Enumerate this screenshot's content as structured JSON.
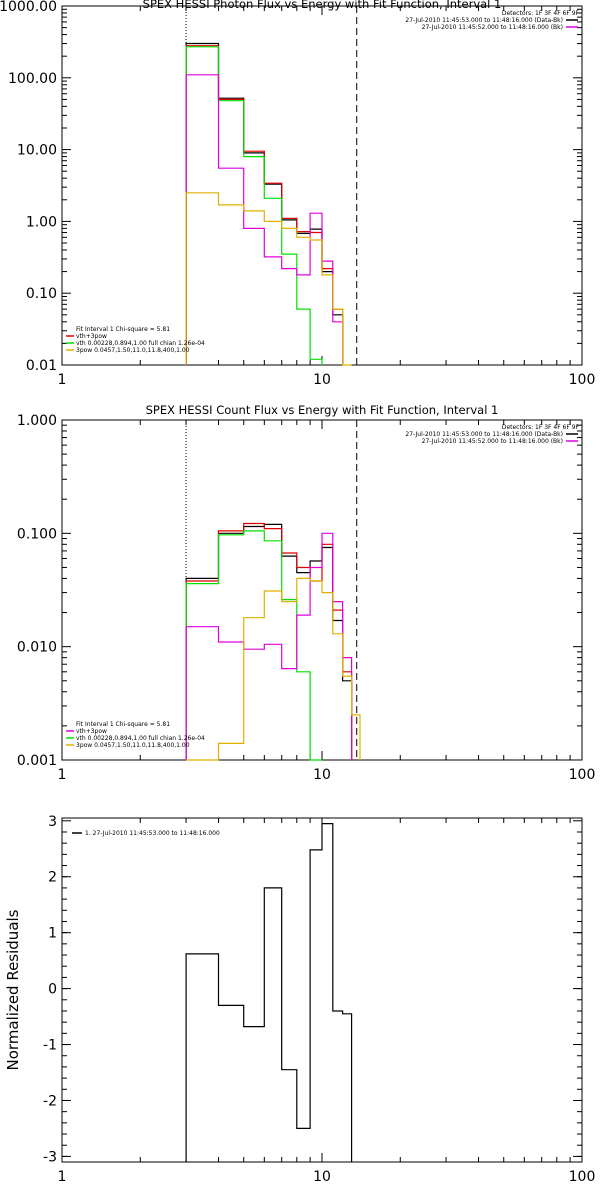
{
  "colors": {
    "black": "#000000",
    "red": "#e00000",
    "green": "#00e000",
    "magenta": "#e000e0",
    "yellow": "#e0b000"
  },
  "chart_data": [
    {
      "type": "line",
      "title": "SPEX HESSI Photon Flux vs Energy with Fit Function, Interval 1",
      "xscale": "log",
      "yscale": "log",
      "xlim": [
        1,
        100
      ],
      "ylim": [
        0.01,
        1000
      ],
      "xticks": [
        1,
        10,
        100
      ],
      "xticklabels": [
        "1",
        "10",
        "100"
      ],
      "yticks": [
        0.01,
        0.1,
        1,
        10,
        100,
        1000
      ],
      "yticklabels": [
        "0.01",
        "0.10",
        "1.00",
        "10.00",
        "100.00",
        "1000.00"
      ],
      "ylabel": "",
      "vlines": [
        {
          "x": 3,
          "style": "dotted"
        },
        {
          "x": 13.6,
          "style": "dashed"
        }
      ],
      "legend_top": {
        "lines": [
          "Detectors: 1F 3F 4F 6F 9F",
          "27-Jul-2010 11:45:53.000 to 11:48:16.000 (Data-Bk)",
          "27-Jul-2010 11:45:52.000 to 11:48:16.000 (Bk)"
        ],
        "keys": [
          "",
          "black",
          "magenta"
        ]
      },
      "legend_bottom": {
        "lines": [
          "Fit Interval 1    Chi-square = 5.81",
          "vth+3pow",
          "vth 0.00228,0.894,1.00  full chian 1.26e-04",
          "3pow 0.0457,1.50,11.0,11.8,400,1.00"
        ],
        "keys": [
          "",
          "red",
          "green",
          "yellow"
        ]
      },
      "edges": [
        3,
        4,
        5,
        6,
        7,
        8,
        9,
        10,
        11,
        12,
        13,
        14,
        15
      ],
      "series": [
        {
          "key": "black",
          "values": [
            300,
            52,
            9,
            3.3,
            1.05,
            0.68,
            0.78,
            0.2,
            0.05,
            null,
            null,
            null
          ]
        },
        {
          "key": "red",
          "values": [
            280,
            50,
            9.5,
            3.4,
            1.1,
            0.72,
            0.7,
            0.22,
            0.06,
            null,
            null,
            null
          ]
        },
        {
          "key": "green",
          "values": [
            270,
            48,
            8,
            2.1,
            0.35,
            0.06,
            0.012,
            null,
            null,
            null,
            null,
            null
          ]
        },
        {
          "key": "magenta",
          "values": [
            110,
            5.5,
            0.8,
            0.32,
            0.22,
            0.18,
            1.3,
            0.28,
            0.04,
            null,
            null,
            null
          ]
        },
        {
          "key": "yellow",
          "values": [
            2.5,
            1.7,
            1.4,
            1.0,
            0.8,
            0.6,
            0.55,
            0.18,
            0.06,
            0.009,
            null,
            null
          ]
        }
      ]
    },
    {
      "type": "line",
      "title": "SPEX HESSI Count Flux vs Energy with Fit Function, Interval 1",
      "xscale": "log",
      "yscale": "log",
      "xlim": [
        1,
        100
      ],
      "ylim": [
        0.001,
        1
      ],
      "xticks": [
        1,
        10,
        100
      ],
      "xticklabels": [
        "1",
        "10",
        "100"
      ],
      "yticks": [
        0.001,
        0.01,
        0.1,
        1
      ],
      "yticklabels": [
        "0.001",
        "0.010",
        "0.100",
        "1.000"
      ],
      "ylabel": "",
      "vlines": [
        {
          "x": 3,
          "style": "dotted"
        },
        {
          "x": 13.6,
          "style": "dashed"
        }
      ],
      "legend_top": {
        "lines": [
          "Detectors: 1F 3F 4F 6F 9F",
          "27-Jul-2010 11:45:53.000 to 11:48:16.000 (Data-Bk)",
          "27-Jul-2010 11:45:52.000 to 11:48:16.000 (Bk)"
        ],
        "keys": [
          "",
          "black",
          "magenta"
        ]
      },
      "legend_bottom": {
        "lines": [
          "Fit Interval 1    Chi-square = 5.81",
          "vth+3pow",
          "vth 0.00228,0.894,1.00  full chian 1.26e-04",
          "3pow 0.0457,1.50,11.0,11.8,400,1.00"
        ],
        "keys": [
          "",
          "magenta",
          "green",
          "yellow"
        ]
      },
      "edges": [
        3,
        4,
        5,
        6,
        7,
        8,
        9,
        10,
        11,
        12,
        13,
        14,
        15
      ],
      "series": [
        {
          "key": "black",
          "values": [
            0.04,
            0.1,
            0.115,
            0.12,
            0.063,
            0.045,
            0.057,
            0.075,
            0.017,
            0.005,
            null,
            null
          ]
        },
        {
          "key": "red",
          "values": [
            0.038,
            0.105,
            0.122,
            0.11,
            0.067,
            0.05,
            0.038,
            0.08,
            0.021,
            0.006,
            null,
            null
          ]
        },
        {
          "key": "green",
          "values": [
            0.036,
            0.097,
            0.105,
            0.086,
            0.026,
            0.006,
            0.001,
            null,
            null,
            null,
            null,
            null
          ]
        },
        {
          "key": "magenta",
          "values": [
            0.015,
            0.011,
            0.0095,
            0.0105,
            0.0064,
            0.019,
            0.05,
            0.1,
            0.025,
            0.008,
            null,
            null
          ]
        },
        {
          "key": "yellow",
          "values": [
            0.0005,
            0.0014,
            0.018,
            0.031,
            0.025,
            0.04,
            0.038,
            0.03,
            0.013,
            0.0055,
            0.0025,
            null
          ]
        }
      ]
    },
    {
      "type": "line",
      "title": "",
      "xscale": "log",
      "yscale": "linear",
      "xlim": [
        1,
        100
      ],
      "ylim": [
        -3.1,
        3.05
      ],
      "xticks": [
        1,
        10,
        100
      ],
      "xticklabels": [
        "1",
        "10",
        "100"
      ],
      "yticks": [
        -3,
        -2,
        -1,
        0,
        1,
        2,
        3
      ],
      "yticklabels": [
        "-3",
        "-2",
        "-1",
        "0",
        "1",
        "2",
        "3"
      ],
      "ylabel": "Normalized Residuals",
      "vlines": [],
      "legend_top_left": {
        "line": "1. 27-Jul-2010 11:45:53.000 to 11:48:16.000",
        "key": "black"
      },
      "edges": [
        3,
        4,
        5,
        6,
        7,
        8,
        9,
        10,
        11,
        12,
        13,
        14,
        15
      ],
      "series": [
        {
          "key": "black",
          "values": [
            0.62,
            -0.3,
            -0.68,
            1.8,
            -1.45,
            -2.5,
            2.48,
            2.95,
            -0.4,
            -0.45,
            null,
            null
          ]
        }
      ]
    }
  ]
}
